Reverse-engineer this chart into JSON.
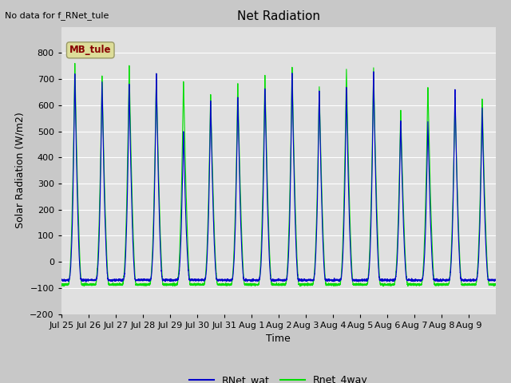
{
  "title": "Net Radiation",
  "xlabel": "Time",
  "ylabel": "Solar Radiation (W/m2)",
  "ylim": [
    -200,
    900
  ],
  "yticks": [
    -200,
    -100,
    0,
    100,
    200,
    300,
    400,
    500,
    600,
    700,
    800
  ],
  "fig_bg_color": "#c8c8c8",
  "plot_bg_color": "#e0e0e0",
  "line1_color": "#0000cc",
  "line2_color": "#00dd00",
  "line1_label": "RNet_wat",
  "line2_label": "Rnet_4way",
  "annotation_text": "No data for f_RNet_tule",
  "legend_box_label": "MB_tule",
  "legend_box_color": "#dddd99",
  "legend_box_text_color": "#880000",
  "tick_labels": [
    "Jul 25",
    "Jul 26",
    "Jul 27",
    "Jul 28",
    "Jul 29",
    "Jul 30",
    "Jul 31",
    "Aug 1",
    "Aug 2",
    "Aug 3",
    "Aug 4",
    "Aug 5",
    "Aug 6",
    "Aug 7",
    "Aug 8",
    "Aug 9"
  ],
  "n_days": 16,
  "day_peaks_wat": [
    730,
    700,
    690,
    730,
    505,
    625,
    640,
    675,
    735,
    665,
    680,
    735,
    550,
    545,
    670,
    600
  ],
  "day_peaks_4way": [
    770,
    720,
    760,
    730,
    700,
    650,
    690,
    720,
    755,
    680,
    745,
    750,
    590,
    675,
    640,
    635
  ],
  "title_fontsize": 11,
  "axis_fontsize": 9,
  "tick_fontsize": 8
}
